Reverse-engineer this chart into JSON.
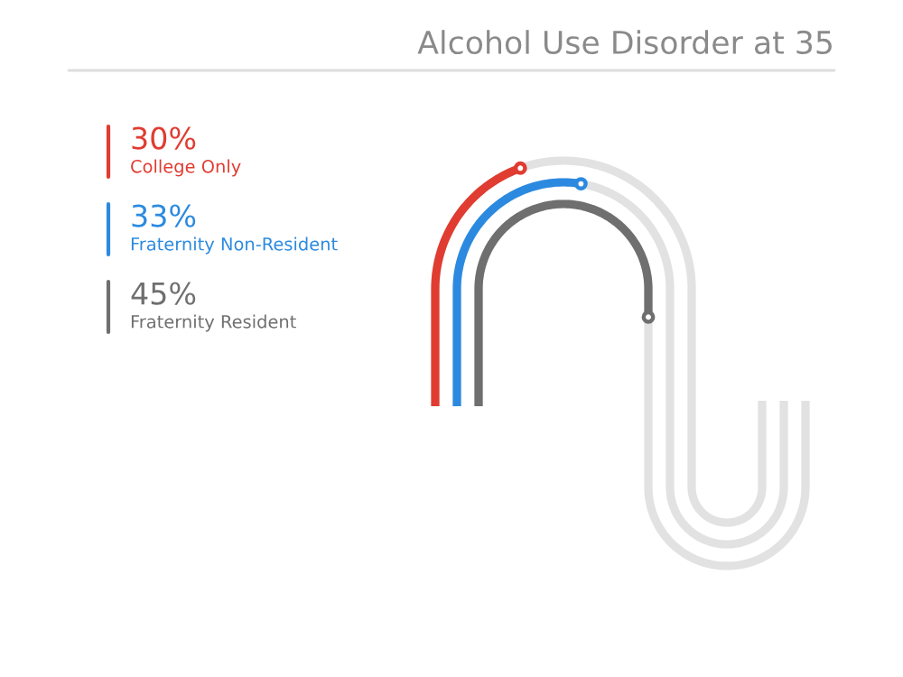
{
  "chart_data": {
    "type": "other",
    "title": "Alcohol Use Disorder at 35",
    "categories": [
      "College Only",
      "Fraternity Non-Resident",
      "Fraternity Resident"
    ],
    "values": [
      30,
      33,
      45
    ],
    "value_labels": [
      "30%",
      "33%",
      "45%"
    ],
    "colors": [
      "#e03c31",
      "#2b8ae0",
      "#6f6f6f"
    ]
  }
}
